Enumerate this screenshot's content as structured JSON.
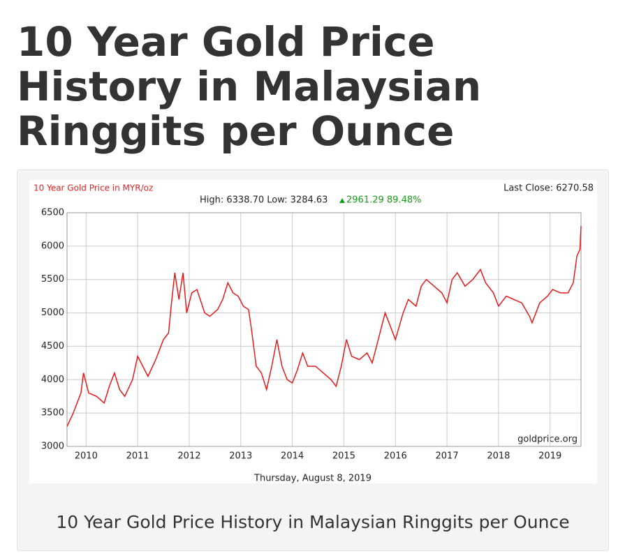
{
  "page": {
    "heading": "10 Year Gold Price History in Malaysian Ringgits per Ounce",
    "caption": "10 Year Gold Price History in Malaysian Ringgits per Ounce"
  },
  "chart_data": {
    "type": "line",
    "title": "10 Year Gold Price in MYR/oz",
    "last_close": "Last Close: 6270.58",
    "stats": "High: 6338.70 Low: 3284.63",
    "change": "2961.29 89.48%",
    "source": "goldprice.org",
    "date": "Thursday, August 8, 2019",
    "x": [
      2009.63,
      2009.75,
      2009.9,
      2009.95,
      2010.05,
      2010.2,
      2010.35,
      2010.45,
      2010.55,
      2010.65,
      2010.75,
      2010.9,
      2011.0,
      2011.1,
      2011.2,
      2011.35,
      2011.5,
      2011.6,
      2011.65,
      2011.72,
      2011.8,
      2011.88,
      2011.95,
      2012.05,
      2012.15,
      2012.3,
      2012.4,
      2012.55,
      2012.65,
      2012.75,
      2012.85,
      2012.95,
      2013.05,
      2013.15,
      2013.2,
      2013.3,
      2013.4,
      2013.5,
      2013.6,
      2013.7,
      2013.8,
      2013.9,
      2014.0,
      2014.1,
      2014.2,
      2014.3,
      2014.45,
      2014.6,
      2014.75,
      2014.85,
      2014.95,
      2015.05,
      2015.15,
      2015.3,
      2015.45,
      2015.55,
      2015.7,
      2015.8,
      2015.9,
      2016.0,
      2016.15,
      2016.25,
      2016.4,
      2016.5,
      2016.6,
      2016.75,
      2016.9,
      2017.0,
      2017.1,
      2017.2,
      2017.35,
      2017.5,
      2017.65,
      2017.75,
      2017.9,
      2018.0,
      2018.15,
      2018.3,
      2018.45,
      2018.6,
      2018.65,
      2018.8,
      2018.95,
      2019.05,
      2019.2,
      2019.35,
      2019.45,
      2019.52,
      2019.58,
      2019.6
    ],
    "series": [
      {
        "name": "Gold Price",
        "color": "#e41a1a",
        "values": [
          3300,
          3500,
          3800,
          4100,
          3800,
          3750,
          3650,
          3900,
          4100,
          3850,
          3750,
          4000,
          4350,
          4200,
          4050,
          4300,
          4600,
          4700,
          5100,
          5600,
          5200,
          5600,
          5000,
          5300,
          5350,
          5000,
          4950,
          5050,
          5200,
          5450,
          5300,
          5250,
          5100,
          5050,
          4800,
          4200,
          4100,
          3850,
          4200,
          4600,
          4200,
          4000,
          3950,
          4150,
          4400,
          4200,
          4200,
          4100,
          4000,
          3900,
          4200,
          4600,
          4350,
          4300,
          4400,
          4250,
          4700,
          5000,
          4800,
          4600,
          5000,
          5200,
          5100,
          5400,
          5500,
          5400,
          5300,
          5150,
          5500,
          5600,
          5400,
          5500,
          5650,
          5450,
          5300,
          5100,
          5250,
          5200,
          5150,
          4950,
          4850,
          5150,
          5250,
          5350,
          5300,
          5300,
          5450,
          5850,
          5950,
          6300
        ]
      }
    ],
    "xlim": [
      2009.63,
      2019.6
    ],
    "xticks": [
      2010,
      2011,
      2012,
      2013,
      2014,
      2015,
      2016,
      2017,
      2018,
      2019
    ],
    "ylim": [
      3000,
      6500
    ],
    "yticks": [
      3000,
      3500,
      4000,
      4500,
      5000,
      5500,
      6000,
      6500
    ],
    "grid": true
  }
}
